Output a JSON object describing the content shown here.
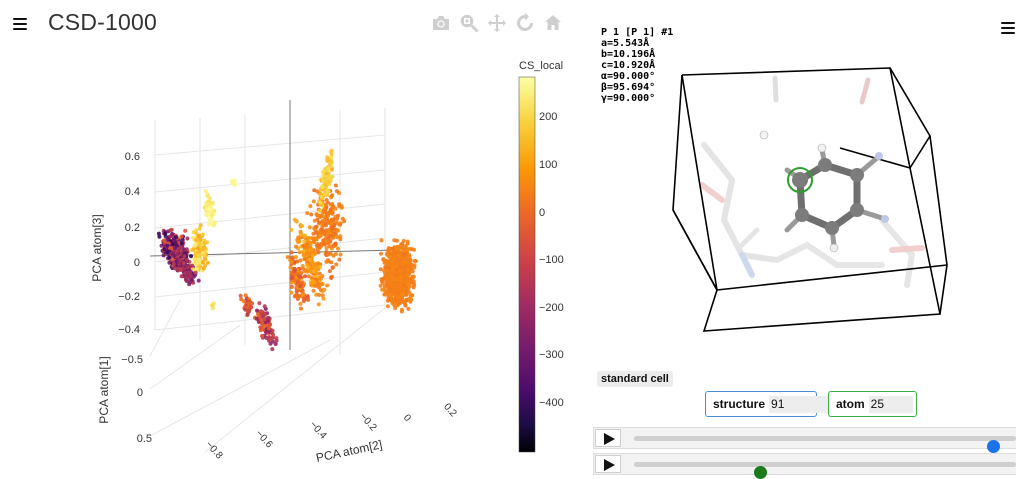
{
  "app": {
    "title": "CSD-1000"
  },
  "left_menu": {
    "icon": "hamburger-menu-icon"
  },
  "right_menu": {
    "icon": "hamburger-menu-icon"
  },
  "modebar": {
    "buttons": [
      {
        "icon": "camera-icon",
        "name": "Download plot as a png"
      },
      {
        "icon": "zoom-icon",
        "name": "Zoom"
      },
      {
        "icon": "pan-icon",
        "name": "Pan"
      },
      {
        "icon": "orbit-rotation-icon",
        "name": "Orbital rotation"
      },
      {
        "icon": "home-icon",
        "name": "Reset camera"
      }
    ]
  },
  "scene": {
    "axes": {
      "z_title": "PCA atom[3]",
      "y_title": "PCA atom[1]",
      "x_title": "PCA atom[2]"
    },
    "z_ticks": [
      "0.6",
      "0.4",
      "0.2",
      "0",
      "−0.2",
      "−0.4"
    ],
    "y_ticks": [
      "−0.5",
      "0",
      "0.5"
    ],
    "x_ticks": [
      "−0.8",
      "−0.6",
      "−0.4",
      "−0.2",
      "0",
      "0.2"
    ]
  },
  "colorbar": {
    "title": "CS_local",
    "ticks": [
      "200",
      "100",
      "0",
      "−100",
      "−200",
      "−300",
      "−400"
    ],
    "range": [
      -480,
      290
    ],
    "colormap": "inferno"
  },
  "structure_viewer": {
    "cell_info": [
      "P 1 [P 1] #1",
      "a=5.543Å",
      "b=10.196Å",
      "c=10.920Å",
      "α=90.000°",
      "β=95.694°",
      "γ=90.000°"
    ],
    "standard_cell_label": "standard cell"
  },
  "selectors": {
    "structure": {
      "label": "structure",
      "value": "91",
      "color": "#4a8fd6"
    },
    "atom": {
      "label": "atom",
      "value": "25",
      "color": "#3fae4a"
    }
  },
  "players": {
    "structure": {
      "position": 0.94,
      "knob_color": "#1a73e8"
    },
    "atom": {
      "position": 0.33,
      "knob_color": "#1b7a1b"
    }
  }
}
